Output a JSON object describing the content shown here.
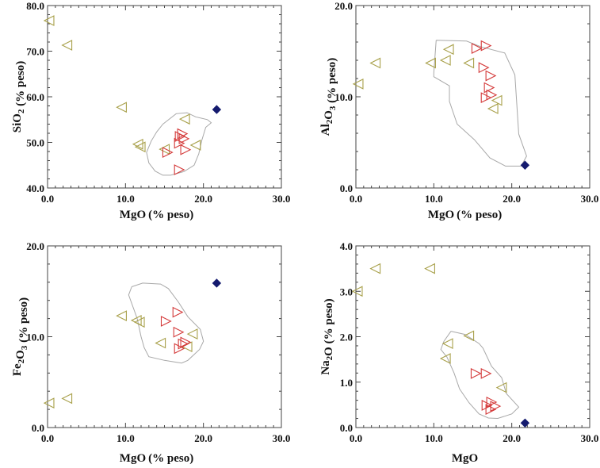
{
  "colors": {
    "series_a": "#a8a04a",
    "series_b": "#d43a3a",
    "series_c": "#141a6e",
    "field": "#a8a8a8"
  },
  "chart_data": [
    {
      "type": "scatter",
      "id": "sio2",
      "title": "",
      "xlabel": "MgO",
      "xlabel_unit": "(% peso)",
      "ylabel": "SiO2 (% peso)",
      "ylabel_parts": {
        "main": "SiO",
        "sub": "2",
        "unit": " (% peso)"
      },
      "xlim": [
        0,
        30
      ],
      "ylim": [
        40,
        80
      ],
      "xticks": [
        "0.0",
        "10.0",
        "20.0",
        "30.0"
      ],
      "yticks": [
        "40.0",
        "50.0",
        "60.0",
        "70.0",
        "80.0"
      ],
      "series": [
        {
          "name": "left-triangle",
          "marker": "triangle-left",
          "color": "#a8a04a",
          "points": [
            [
              0.2,
              76.7
            ],
            [
              2.5,
              71.3
            ],
            [
              9.5,
              57.7
            ],
            [
              11.6,
              49.6
            ],
            [
              11.9,
              49.0
            ],
            [
              15.0,
              48.5
            ],
            [
              17.6,
              55.1
            ],
            [
              19.0,
              49.4
            ]
          ]
        },
        {
          "name": "right-triangle",
          "marker": "triangle-right",
          "color": "#d43a3a",
          "points": [
            [
              17.0,
              51.3
            ],
            [
              17.5,
              50.8
            ],
            [
              16.9,
              49.8
            ],
            [
              17.7,
              48.4
            ],
            [
              15.4,
              47.8
            ],
            [
              16.9,
              44.0
            ],
            [
              17.3,
              51.9
            ]
          ]
        },
        {
          "name": "diamond",
          "marker": "diamond",
          "color": "#141a6e",
          "points": [
            [
              21.7,
              57.2
            ]
          ]
        }
      ],
      "field_outline": [
        [
          14.8,
          54.0
        ],
        [
          16.5,
          56.3
        ],
        [
          17.9,
          56.5
        ],
        [
          19.0,
          55.6
        ],
        [
          20.5,
          55.0
        ],
        [
          21.0,
          54.3
        ],
        [
          20.3,
          53.3
        ],
        [
          19.8,
          50.5
        ],
        [
          19.4,
          47.5
        ],
        [
          18.8,
          45.0
        ],
        [
          17.5,
          43.6
        ],
        [
          15.8,
          42.8
        ],
        [
          14.8,
          42.8
        ],
        [
          13.8,
          43.7
        ],
        [
          13.0,
          45.5
        ],
        [
          12.7,
          47.8
        ],
        [
          13.3,
          50.3
        ],
        [
          14.0,
          52.3
        ],
        [
          14.8,
          54.0
        ]
      ]
    },
    {
      "type": "scatter",
      "id": "al2o3",
      "title": "",
      "xlabel": "MgO",
      "xlabel_unit": "(% peso)",
      "ylabel": "Al2O3 (% peso)",
      "ylabel_parts": {
        "main": "Al",
        "sub": "2",
        "main2": "O",
        "sub2": "3",
        "unit": " (% peso)"
      },
      "xlim": [
        0,
        30
      ],
      "ylim": [
        0,
        20
      ],
      "xticks": [
        "0.0",
        "10.0",
        "20.0",
        "30.0"
      ],
      "yticks": [
        "0.0",
        "10.0",
        "20.0"
      ],
      "series": [
        {
          "name": "left-triangle",
          "marker": "triangle-left",
          "color": "#a8a04a",
          "points": [
            [
              0.3,
              11.4
            ],
            [
              2.5,
              13.7
            ],
            [
              9.6,
              13.7
            ],
            [
              11.5,
              14.0
            ],
            [
              11.9,
              15.2
            ],
            [
              14.5,
              13.7
            ],
            [
              18.1,
              9.6
            ],
            [
              17.6,
              8.7
            ]
          ]
        },
        {
          "name": "right-triangle",
          "marker": "triangle-right",
          "color": "#d43a3a",
          "points": [
            [
              16.7,
              15.6
            ],
            [
              15.5,
              15.3
            ],
            [
              16.4,
              13.2
            ],
            [
              17.3,
              12.3
            ],
            [
              17.1,
              11.0
            ],
            [
              16.7,
              9.9
            ],
            [
              17.4,
              10.2
            ]
          ]
        },
        {
          "name": "diamond",
          "marker": "diamond",
          "color": "#141a6e",
          "points": [
            [
              21.7,
              2.5
            ]
          ]
        }
      ],
      "field_outline": [
        [
          10.3,
          16.2
        ],
        [
          14.2,
          16.1
        ],
        [
          16.0,
          15.5
        ],
        [
          19.1,
          14.8
        ],
        [
          20.4,
          12.4
        ],
        [
          20.9,
          5.9
        ],
        [
          21.9,
          3.5
        ],
        [
          21.2,
          2.4
        ],
        [
          19.2,
          2.4
        ],
        [
          17.2,
          3.3
        ],
        [
          15.2,
          5.3
        ],
        [
          13.0,
          7.0
        ],
        [
          12.0,
          9.5
        ],
        [
          12.0,
          11.2
        ],
        [
          10.0,
          12.2
        ],
        [
          10.0,
          12.6
        ],
        [
          10.3,
          16.2
        ]
      ]
    },
    {
      "type": "scatter",
      "id": "fe2o3",
      "title": "",
      "xlabel": "MgO",
      "xlabel_unit": "(% peso)",
      "ylabel": "Fe2O3 (% peso)",
      "ylabel_parts": {
        "main": "Fe",
        "sub": "2",
        "main2": "O",
        "sub2": "3",
        "unit": " (% peso)"
      },
      "xlim": [
        0,
        30
      ],
      "ylim": [
        0,
        20
      ],
      "xticks": [
        "0.0",
        "10.0",
        "20.0",
        "30.0"
      ],
      "yticks": [
        "0.0",
        "10.0",
        "20.0"
      ],
      "series": [
        {
          "name": "left-triangle",
          "marker": "triangle-left",
          "color": "#a8a04a",
          "points": [
            [
              0.2,
              2.7
            ],
            [
              2.5,
              3.2
            ],
            [
              9.5,
              12.3
            ],
            [
              11.4,
              11.8
            ],
            [
              11.8,
              11.6
            ],
            [
              14.5,
              9.3
            ],
            [
              18.6,
              10.3
            ],
            [
              17.9,
              8.9
            ]
          ]
        },
        {
          "name": "right-triangle",
          "marker": "triangle-right",
          "color": "#d43a3a",
          "points": [
            [
              16.7,
              12.7
            ],
            [
              15.2,
              11.7
            ],
            [
              16.8,
              10.5
            ],
            [
              17.4,
              9.2
            ],
            [
              17.7,
              9.4
            ],
            [
              16.9,
              8.7
            ]
          ]
        },
        {
          "name": "diamond",
          "marker": "diamond",
          "color": "#141a6e",
          "points": [
            [
              21.7,
              15.9
            ]
          ]
        }
      ],
      "field_outline": [
        [
          10.8,
          15.5
        ],
        [
          12.2,
          15.9
        ],
        [
          14.5,
          15.8
        ],
        [
          15.5,
          15.3
        ],
        [
          16.8,
          13.8
        ],
        [
          18.0,
          12.2
        ],
        [
          19.6,
          10.8
        ],
        [
          20.0,
          9.5
        ],
        [
          19.5,
          8.6
        ],
        [
          18.0,
          7.4
        ],
        [
          17.2,
          7.1
        ],
        [
          15.0,
          7.4
        ],
        [
          13.0,
          7.8
        ],
        [
          12.4,
          8.8
        ],
        [
          12.0,
          10.0
        ],
        [
          11.5,
          12.0
        ],
        [
          10.4,
          14.6
        ],
        [
          10.8,
          15.5
        ]
      ]
    },
    {
      "type": "scatter",
      "id": "na2o",
      "title": "",
      "xlabel": "MgO",
      "xlabel_unit": "",
      "ylabel": "Na2O (% peso)",
      "ylabel_parts": {
        "main": "Na",
        "sub": "2",
        "main2": "O",
        "sub2": "",
        "unit": " (% peso)"
      },
      "xlim": [
        0,
        30
      ],
      "ylim": [
        0,
        4
      ],
      "xticks": [
        "0.0",
        "10.0",
        "20.0",
        "30.0"
      ],
      "yticks": [
        "0.0",
        "1.0",
        "2.0",
        "3.0",
        "4.0"
      ],
      "series": [
        {
          "name": "left-triangle",
          "marker": "triangle-left",
          "color": "#a8a04a",
          "points": [
            [
              0.2,
              3.0
            ],
            [
              2.5,
              3.5
            ],
            [
              9.5,
              3.5
            ],
            [
              14.5,
              2.02
            ],
            [
              11.8,
              1.85
            ],
            [
              11.5,
              1.52
            ],
            [
              18.7,
              0.88
            ]
          ]
        },
        {
          "name": "right-triangle",
          "marker": "triangle-right",
          "color": "#d43a3a",
          "points": [
            [
              15.4,
              1.19
            ],
            [
              16.7,
              1.19
            ],
            [
              16.8,
              0.49
            ],
            [
              17.4,
              0.56
            ],
            [
              17.9,
              0.47
            ],
            [
              17.3,
              0.4
            ]
          ]
        },
        {
          "name": "diamond",
          "marker": "diamond",
          "color": "#141a6e",
          "points": [
            [
              21.7,
              0.1
            ]
          ]
        }
      ],
      "field_outline": [
        [
          12.2,
          2.12
        ],
        [
          14.0,
          2.05
        ],
        [
          15.8,
          1.85
        ],
        [
          16.3,
          1.75
        ],
        [
          17.4,
          1.35
        ],
        [
          18.7,
          1.1
        ],
        [
          19.3,
          0.75
        ],
        [
          20.9,
          0.45
        ],
        [
          20.0,
          0.3
        ],
        [
          18.2,
          0.2
        ],
        [
          17.0,
          0.21
        ],
        [
          15.8,
          0.3
        ],
        [
          14.5,
          0.55
        ],
        [
          13.3,
          0.85
        ],
        [
          12.6,
          1.2
        ],
        [
          11.7,
          1.55
        ],
        [
          10.9,
          1.72
        ],
        [
          11.3,
          1.9
        ],
        [
          12.2,
          2.12
        ]
      ]
    }
  ]
}
